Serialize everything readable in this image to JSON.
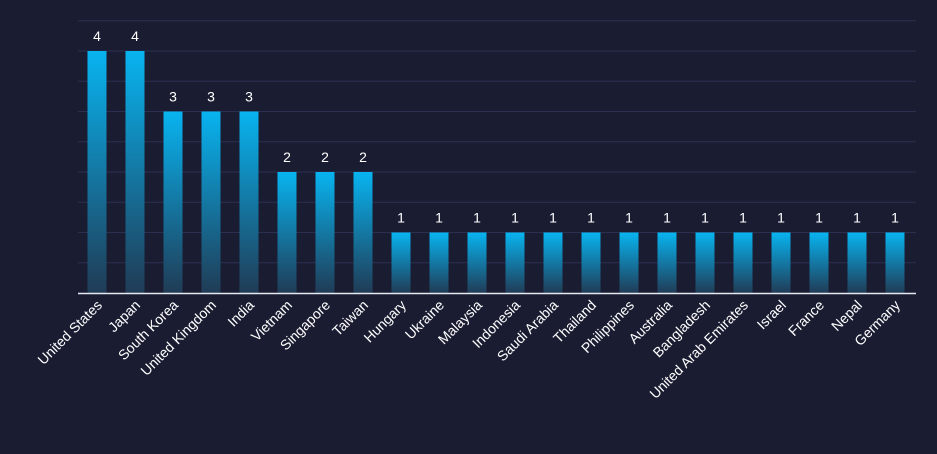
{
  "colors": {
    "background": "#1a1c32",
    "bar_top": "#08b4f0",
    "bar_bottom": "#203c56",
    "grid": "#2c3050",
    "axis": "#e6e8f0",
    "text": "#ffffff"
  },
  "chart_data": {
    "type": "bar",
    "title": "",
    "xlabel": "",
    "ylabel": "",
    "ylim": [
      0,
      4.75
    ],
    "grid": true,
    "categories": [
      "United States",
      "Japan",
      "South Korea",
      "United Kingdom",
      "India",
      "Vietnam",
      "Singapore",
      "Taiwan",
      "Hungary",
      "Ukraine",
      "Malaysia",
      "Indonesia",
      "Saudi Arabia",
      "Thailand",
      "Philippines",
      "Australia",
      "Bangladesh",
      "United Arab Emirates",
      "Israel",
      "France",
      "Nepal",
      "Germany"
    ],
    "values": [
      4,
      4,
      3,
      3,
      3,
      2,
      2,
      2,
      1,
      1,
      1,
      1,
      1,
      1,
      1,
      1,
      1,
      1,
      1,
      1,
      1,
      1
    ],
    "gridline_values": [
      0.5,
      1,
      1.5,
      2,
      2.5,
      3,
      3.5,
      4,
      4.5
    ]
  }
}
